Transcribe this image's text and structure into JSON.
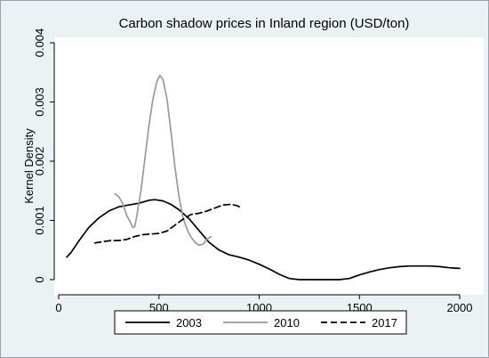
{
  "chart_data": {
    "type": "line",
    "title": "Carbon shadow prices in Inland region (USD/ton)",
    "xlabel": "",
    "ylabel": "Kernel Density",
    "xlim": [
      0,
      2050
    ],
    "ylim": [
      0,
      0.004
    ],
    "x_ticks": [
      0,
      500,
      1000,
      1500,
      2000
    ],
    "x_tick_labels": [
      "0",
      "500",
      "1000",
      "1500",
      "2000"
    ],
    "y_ticks": [
      0,
      0.001,
      0.002,
      0.003,
      0.004
    ],
    "y_tick_labels": [
      "0",
      "0.001",
      "0.002",
      "0.003",
      "0.004"
    ],
    "grid": false,
    "legend_position": "bottom",
    "series": [
      {
        "name": "2003",
        "color": "#000000",
        "dash": "solid",
        "points": [
          [
            40,
            0.00038
          ],
          [
            60,
            0.00045
          ],
          [
            100,
            0.00065
          ],
          [
            150,
            0.00088
          ],
          [
            200,
            0.00104
          ],
          [
            250,
            0.00116
          ],
          [
            300,
            0.00123
          ],
          [
            350,
            0.00126
          ],
          [
            400,
            0.00129
          ],
          [
            450,
            0.00134
          ],
          [
            480,
            0.00135
          ],
          [
            520,
            0.00133
          ],
          [
            560,
            0.00127
          ],
          [
            600,
            0.00118
          ],
          [
            650,
            0.00103
          ],
          [
            700,
            0.00083
          ],
          [
            750,
            0.00063
          ],
          [
            800,
            0.0005
          ],
          [
            850,
            0.00042
          ],
          [
            900,
            0.00038
          ],
          [
            950,
            0.00033
          ],
          [
            1000,
            0.00026
          ],
          [
            1050,
            0.00018
          ],
          [
            1100,
            9e-05
          ],
          [
            1150,
            2e-05
          ],
          [
            1200,
            0.0
          ],
          [
            1300,
            0.0
          ],
          [
            1400,
            0.0
          ],
          [
            1450,
            2e-05
          ],
          [
            1500,
            8e-05
          ],
          [
            1550,
            0.00013
          ],
          [
            1600,
            0.00017
          ],
          [
            1650,
            0.0002
          ],
          [
            1700,
            0.00022
          ],
          [
            1750,
            0.00023
          ],
          [
            1800,
            0.00023
          ],
          [
            1850,
            0.00023
          ],
          [
            1900,
            0.00022
          ],
          [
            1950,
            0.0002
          ],
          [
            2000,
            0.00019
          ]
        ]
      },
      {
        "name": "2010",
        "color": "#9a9a9a",
        "dash": "solid",
        "points": [
          [
            280,
            0.00145
          ],
          [
            300,
            0.0014
          ],
          [
            320,
            0.00128
          ],
          [
            340,
            0.00108
          ],
          [
            360,
            0.00095
          ],
          [
            370,
            0.00088
          ],
          [
            380,
            0.0009
          ],
          [
            390,
            0.00108
          ],
          [
            410,
            0.0015
          ],
          [
            430,
            0.00205
          ],
          [
            450,
            0.0026
          ],
          [
            470,
            0.00305
          ],
          [
            490,
            0.00335
          ],
          [
            505,
            0.00345
          ],
          [
            520,
            0.00338
          ],
          [
            540,
            0.00305
          ],
          [
            560,
            0.0025
          ],
          [
            580,
            0.0019
          ],
          [
            600,
            0.0014
          ],
          [
            620,
            0.00105
          ],
          [
            640,
            0.00085
          ],
          [
            660,
            0.00072
          ],
          [
            680,
            0.00063
          ],
          [
            700,
            0.00058
          ],
          [
            720,
            0.0006
          ],
          [
            740,
            0.00068
          ],
          [
            760,
            0.00073
          ]
        ]
      },
      {
        "name": "2017",
        "color": "#000000",
        "dash": "dashed",
        "points": [
          [
            180,
            0.00062
          ],
          [
            220,
            0.00064
          ],
          [
            260,
            0.00066
          ],
          [
            300,
            0.00066
          ],
          [
            340,
            0.00068
          ],
          [
            380,
            0.00073
          ],
          [
            420,
            0.00076
          ],
          [
            460,
            0.00077
          ],
          [
            500,
            0.00078
          ],
          [
            540,
            0.00082
          ],
          [
            580,
            0.00092
          ],
          [
            620,
            0.00102
          ],
          [
            660,
            0.0011
          ],
          [
            700,
            0.00112
          ],
          [
            740,
            0.00116
          ],
          [
            780,
            0.00121
          ],
          [
            820,
            0.00126
          ],
          [
            860,
            0.00127
          ],
          [
            890,
            0.00125
          ],
          [
            910,
            0.00121
          ]
        ]
      }
    ]
  }
}
